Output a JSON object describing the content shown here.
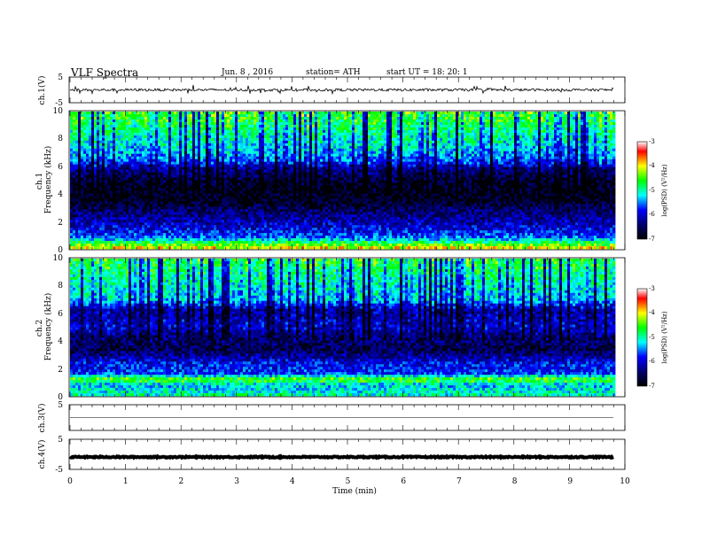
{
  "header": {
    "title": "VLF  Spectra",
    "date": "Jun. 8  , 2016",
    "station": "station= ATH",
    "start": "start  UT =    18: 20: 1"
  },
  "chart_data": [
    {
      "type": "line",
      "panel": "ch1-waveform",
      "ylabel": "ch.1(V)",
      "ylim": [
        -5,
        5
      ],
      "yticks": [
        "5",
        "-5"
      ],
      "xlim": [
        0,
        10
      ],
      "level": 0,
      "noise_amplitude": 0.5,
      "end_time": 9.8
    },
    {
      "type": "heatmap",
      "panel": "ch1-spectrogram",
      "ylabel": "ch.1\nFrequency  (kHz)",
      "ylim": [
        0,
        10
      ],
      "yticks": [
        "0",
        "2",
        "4",
        "6",
        "8",
        "10"
      ],
      "xlim": [
        0,
        10
      ],
      "end_time": 9.8,
      "colorbar": {
        "label": "log(PSD) (V²/Hz)",
        "range": [
          -7,
          -3
        ],
        "ticks": [
          "-3",
          "-4",
          "-5",
          "-6",
          "-7"
        ]
      },
      "profile": [
        {
          "f": 0,
          "v": -3.9
        },
        {
          "f": 0.4,
          "v": -4.6
        },
        {
          "f": 0.8,
          "v": -5.6
        },
        {
          "f": 1.6,
          "v": -6.0
        },
        {
          "f": 2.4,
          "v": -6.3
        },
        {
          "f": 3.0,
          "v": -6.6
        },
        {
          "f": 3.6,
          "v": -6.9
        },
        {
          "f": 4.8,
          "v": -6.8
        },
        {
          "f": 5.8,
          "v": -6.3
        },
        {
          "f": 6.4,
          "v": -5.6
        },
        {
          "f": 7.4,
          "v": -5.2
        },
        {
          "f": 8.6,
          "v": -4.9
        },
        {
          "f": 10,
          "v": -4.5
        }
      ]
    },
    {
      "type": "heatmap",
      "panel": "ch2-spectrogram",
      "ylabel": "ch.2\nFrequency  (kHz)",
      "ylim": [
        0,
        10
      ],
      "yticks": [
        "0",
        "2",
        "4",
        "6",
        "8",
        "10"
      ],
      "xlim": [
        0,
        10
      ],
      "end_time": 9.8,
      "colorbar": {
        "label": "log(PSD) (V²/Hz)",
        "range": [
          -7,
          -3
        ],
        "ticks": [
          "-3",
          "-4",
          "-5",
          "-6",
          "-7"
        ]
      },
      "profile": [
        {
          "f": 0,
          "v": -5.0
        },
        {
          "f": 0.8,
          "v": -5.3
        },
        {
          "f": 1.2,
          "v": -4.4
        },
        {
          "f": 1.6,
          "v": -5.7
        },
        {
          "f": 2.4,
          "v": -5.9
        },
        {
          "f": 3.4,
          "v": -6.6
        },
        {
          "f": 4.2,
          "v": -6.4
        },
        {
          "f": 5.0,
          "v": -6.0
        },
        {
          "f": 6.2,
          "v": -6.2
        },
        {
          "f": 7.0,
          "v": -5.3
        },
        {
          "f": 8.4,
          "v": -5.0
        },
        {
          "f": 10,
          "v": -4.6
        }
      ]
    },
    {
      "type": "line",
      "panel": "ch3-waveform",
      "ylabel": "ch.3(V)",
      "ylim": [
        -5,
        5
      ],
      "yticks": [
        "5"
      ],
      "xlim": [
        0,
        10
      ],
      "level": 0,
      "noise_amplitude": 0.02,
      "end_time": 9.8
    },
    {
      "type": "line",
      "panel": "ch4-waveform",
      "ylabel": "ch.4(V)",
      "ylim": [
        -5,
        5
      ],
      "yticks": [
        "5",
        "-5"
      ],
      "xlim": [
        0,
        10
      ],
      "level": -0.9,
      "noise_amplitude": 0.2,
      "end_time": 9.8
    }
  ],
  "xaxis": {
    "label": "Time  (min)",
    "ticks": [
      "0",
      "1",
      "2",
      "3",
      "4",
      "5",
      "6",
      "7",
      "8",
      "9",
      "10"
    ]
  },
  "colors": {
    "scale": [
      "#000000",
      "#000066",
      "#0000ff",
      "#00ffff",
      "#00ff00",
      "#ffff00",
      "#ff0000",
      "#ffffff"
    ]
  }
}
